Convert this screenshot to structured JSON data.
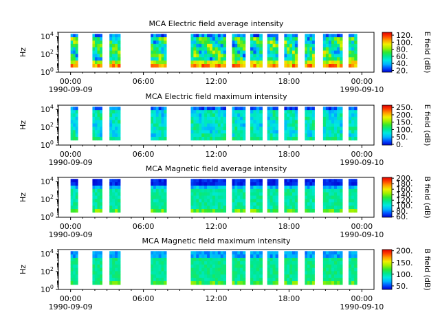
{
  "figure": {
    "x_ticks": [
      {
        "hour": 0,
        "label": "00:00",
        "date": "1990-09-09"
      },
      {
        "hour": 6,
        "label": "06:00",
        "date": ""
      },
      {
        "hour": 12,
        "label": "12:00",
        "date": ""
      },
      {
        "hour": 18,
        "label": "18:00",
        "date": ""
      },
      {
        "hour": 24,
        "label": "00:00",
        "date": "1990-09-10"
      }
    ],
    "colormap": [
      "#0000d0",
      "#0050ff",
      "#00b4ff",
      "#00e8e0",
      "#00e890",
      "#30e830",
      "#a0f000",
      "#f0f000",
      "#ffa000",
      "#ff4000",
      "#e00000"
    ],
    "panels": [
      {
        "title": "MCA  Electric field average intensity",
        "ylabel": "Hz",
        "cbar_label": "E field (dB)",
        "cbar_ticks": [
          "20.",
          "40.",
          "60.",
          "80.",
          "100.",
          "120."
        ],
        "cbar_range": [
          15,
          128
        ],
        "style": "e_avg"
      },
      {
        "title": "MCA  Electric field maximum intensity",
        "ylabel": "Hz",
        "cbar_label": "E field (dB)",
        "cbar_ticks": [
          "0.",
          "50.",
          "100.",
          "150.",
          "200.",
          "250."
        ],
        "cbar_range": [
          -5,
          265
        ],
        "style": "e_max"
      },
      {
        "title": "MCA  Magnetic field average intensity",
        "ylabel": "Hz",
        "cbar_label": "B field (dB)",
        "cbar_ticks": [
          "60.",
          "80.",
          "100.",
          "120.",
          "140.",
          "160.",
          "180.",
          "200."
        ],
        "cbar_range": [
          58,
          203
        ],
        "style": "b_avg"
      },
      {
        "title": "MCA  Magnetic field maximum intensity",
        "ylabel": "Hz",
        "cbar_label": "B field (dB)",
        "cbar_ticks": [
          "50.",
          "100.",
          "150.",
          "200."
        ],
        "cbar_range": [
          35,
          205
        ],
        "style": "b_max"
      }
    ]
  },
  "chart_data": [
    {
      "type": "heatmap",
      "title": "MCA  Electric field average intensity",
      "xlabel": "",
      "ylabel": "Hz",
      "x_range_hours": [
        -1,
        25
      ],
      "y_range_hz": [
        1,
        30000
      ],
      "y_scale": "log",
      "y_ticks": [
        "10^0",
        "10^2",
        "10^4"
      ],
      "colorbar": {
        "label": "E field (dB)",
        "range": [
          15,
          128
        ]
      },
      "data_intervals_hours": [
        [
          0,
          0.6
        ],
        [
          1.8,
          2.6
        ],
        [
          3.2,
          4.1
        ],
        [
          6.6,
          7.9
        ],
        [
          9.9,
          12.8
        ],
        [
          13.3,
          14.4
        ],
        [
          14.8,
          15.8
        ],
        [
          16.2,
          17.1
        ],
        [
          17.6,
          18.7
        ],
        [
          19.3,
          20.1
        ],
        [
          20.8,
          22.4
        ],
        [
          22.9,
          23.6
        ]
      ]
    },
    {
      "type": "heatmap",
      "title": "MCA  Electric field maximum intensity",
      "xlabel": "",
      "ylabel": "Hz",
      "x_range_hours": [
        -1,
        25
      ],
      "y_range_hz": [
        1,
        30000
      ],
      "y_scale": "log",
      "y_ticks": [
        "10^0",
        "10^2",
        "10^4"
      ],
      "colorbar": {
        "label": "E field (dB)",
        "range": [
          -5,
          265
        ]
      },
      "data_intervals_hours": [
        [
          0,
          0.6
        ],
        [
          1.8,
          2.6
        ],
        [
          3.2,
          4.1
        ],
        [
          6.6,
          7.9
        ],
        [
          9.9,
          12.8
        ],
        [
          13.3,
          14.4
        ],
        [
          14.8,
          15.8
        ],
        [
          16.2,
          17.1
        ],
        [
          17.6,
          18.7
        ],
        [
          19.3,
          20.1
        ],
        [
          20.8,
          22.4
        ],
        [
          22.9,
          23.6
        ]
      ]
    },
    {
      "type": "heatmap",
      "title": "MCA  Magnetic field average intensity",
      "xlabel": "",
      "ylabel": "Hz",
      "x_range_hours": [
        -1,
        25
      ],
      "y_range_hz": [
        1,
        30000
      ],
      "y_scale": "log",
      "y_ticks": [
        "10^0",
        "10^2",
        "10^4"
      ],
      "colorbar": {
        "label": "B field (dB)",
        "range": [
          58,
          203
        ]
      },
      "data_intervals_hours": [
        [
          0,
          0.6
        ],
        [
          1.8,
          2.6
        ],
        [
          3.2,
          4.1
        ],
        [
          6.6,
          7.9
        ],
        [
          9.9,
          12.8
        ],
        [
          13.3,
          14.4
        ],
        [
          14.8,
          15.8
        ],
        [
          16.2,
          17.1
        ],
        [
          17.6,
          18.7
        ],
        [
          19.3,
          20.1
        ],
        [
          20.8,
          22.4
        ],
        [
          22.9,
          23.6
        ]
      ]
    },
    {
      "type": "heatmap",
      "title": "MCA  Magnetic field maximum intensity",
      "xlabel": "",
      "ylabel": "Hz",
      "x_range_hours": [
        -1,
        25
      ],
      "y_range_hz": [
        1,
        30000
      ],
      "y_scale": "log",
      "y_ticks": [
        "10^0",
        "10^2",
        "10^4"
      ],
      "colorbar": {
        "label": "B field (dB)",
        "range": [
          35,
          205
        ]
      },
      "data_intervals_hours": [
        [
          0,
          0.6
        ],
        [
          1.8,
          2.6
        ],
        [
          3.2,
          4.1
        ],
        [
          6.6,
          7.9
        ],
        [
          9.9,
          12.8
        ],
        [
          13.3,
          14.4
        ],
        [
          14.8,
          15.8
        ],
        [
          16.2,
          17.1
        ],
        [
          17.6,
          18.7
        ],
        [
          19.3,
          20.1
        ],
        [
          20.8,
          22.4
        ],
        [
          22.9,
          23.6
        ]
      ]
    }
  ]
}
